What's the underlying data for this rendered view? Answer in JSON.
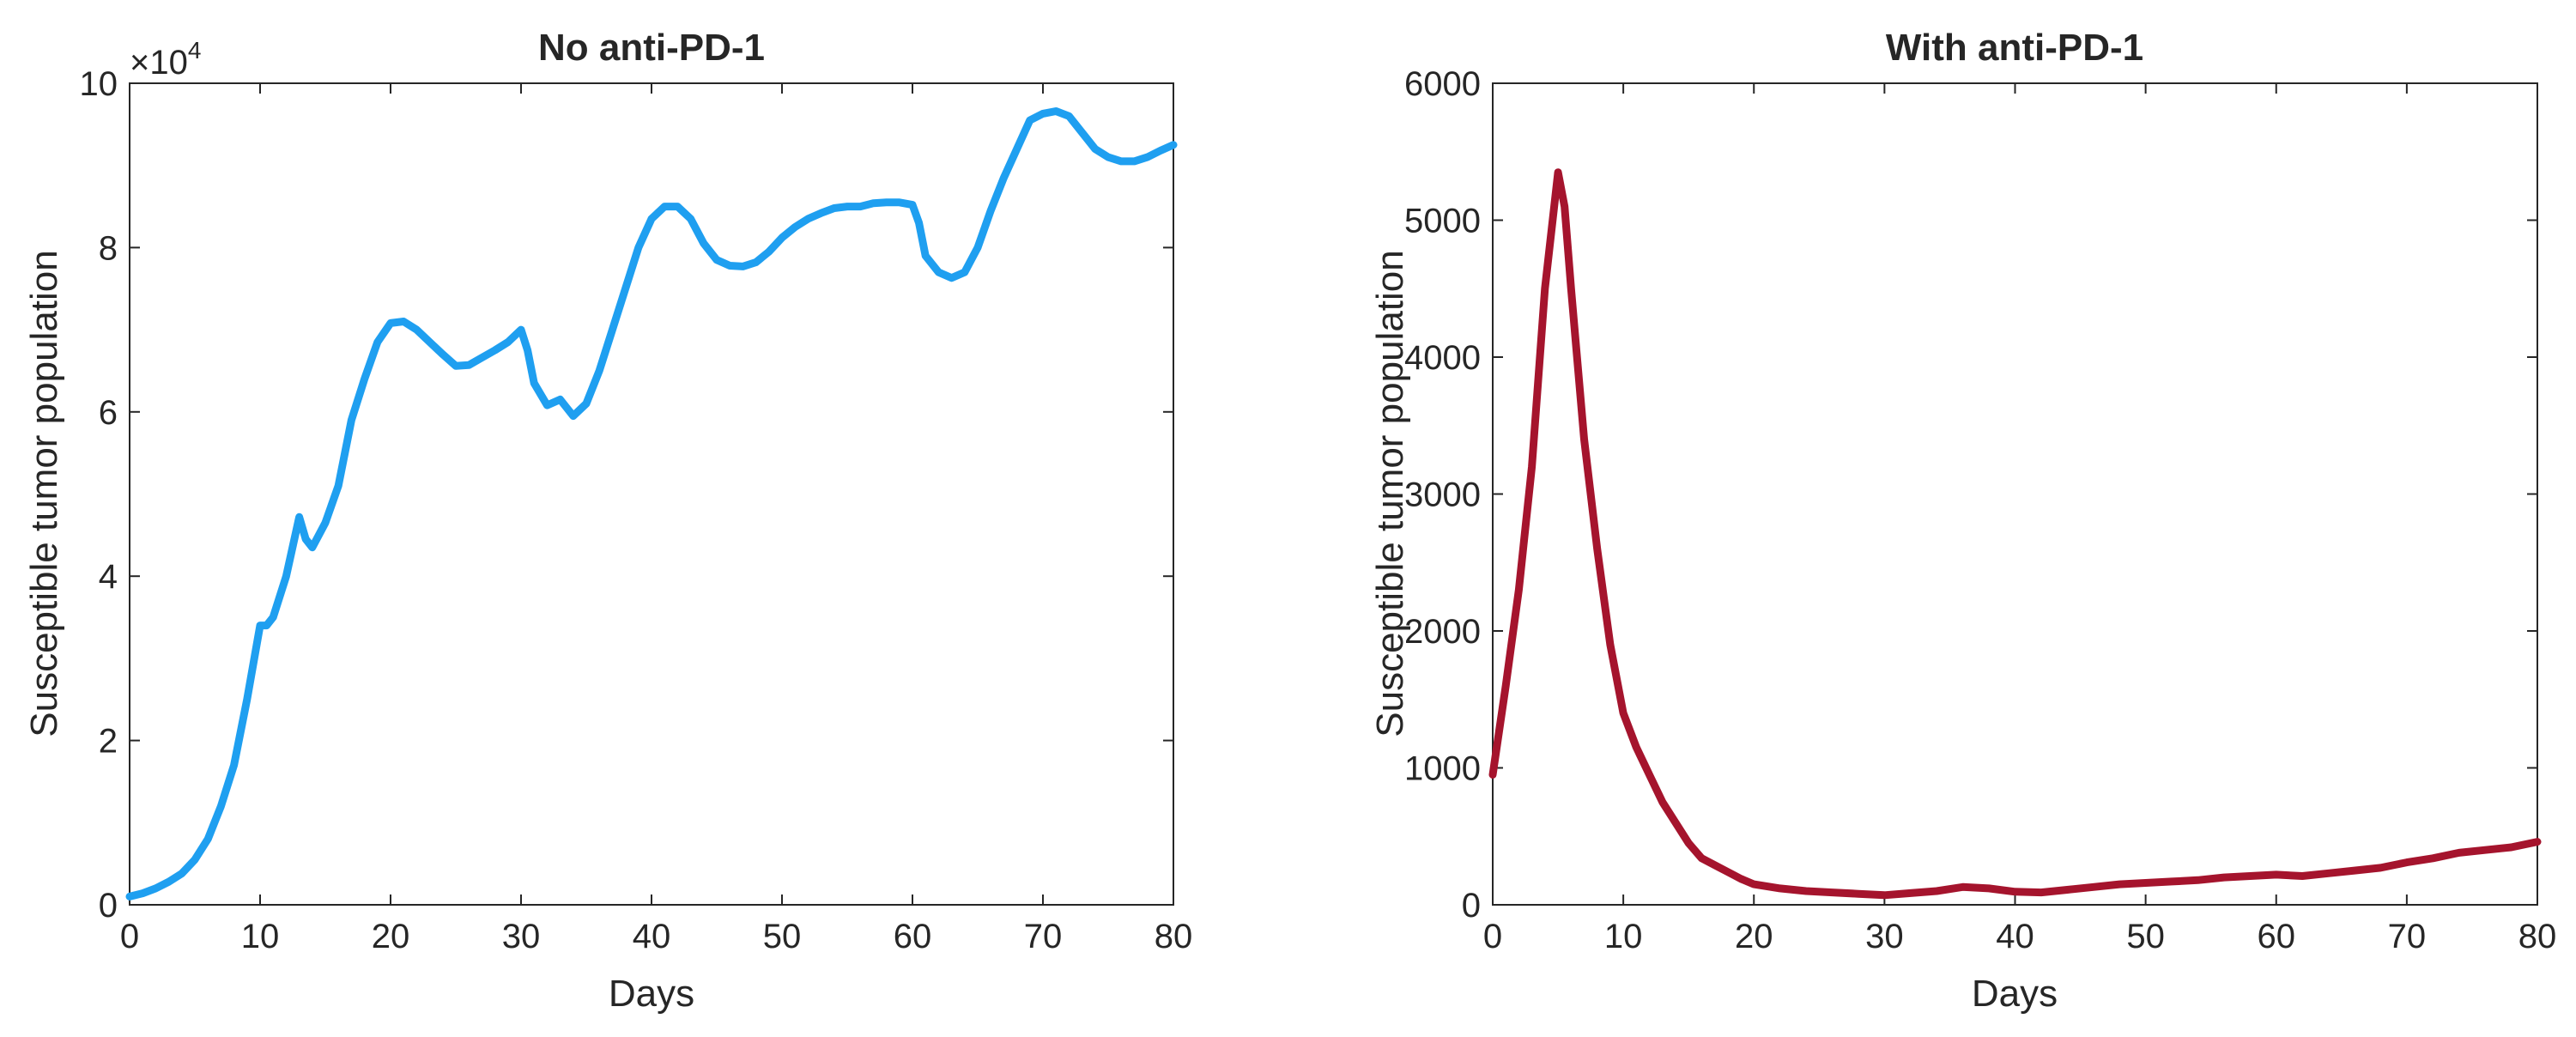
{
  "chart_data": [
    {
      "type": "line",
      "title": "No anti-PD-1",
      "xlabel": "Days",
      "ylabel": "Susceptible tumor population",
      "xlim": [
        0,
        80
      ],
      "ylim": [
        0,
        100000
      ],
      "xticks": [
        0,
        10,
        20,
        30,
        40,
        50,
        60,
        70,
        80
      ],
      "yticks": [
        0,
        2,
        4,
        6,
        8,
        10
      ],
      "y_exponent_label": {
        "base": "×10",
        "power": "4"
      },
      "grid": false,
      "color": "#1f9ff0",
      "series": [
        {
          "x": [
            0,
            1,
            2,
            3,
            4,
            5,
            6,
            7,
            8,
            9,
            10,
            10.5,
            11,
            12,
            13,
            13.5,
            14,
            15,
            16,
            17,
            18,
            19,
            20,
            21,
            22,
            23,
            24,
            25,
            26,
            27,
            28,
            29,
            30,
            30.5,
            31,
            32,
            33,
            33.5,
            34,
            35,
            36,
            37,
            38,
            39,
            40,
            41,
            42,
            43,
            44,
            45,
            46,
            47,
            48,
            49,
            50,
            51,
            52,
            53,
            54,
            55,
            56,
            57,
            58,
            59,
            60,
            60.5,
            61,
            62,
            63,
            64,
            65,
            66,
            67,
            68,
            69,
            70,
            71,
            72,
            73,
            74,
            75,
            76,
            77,
            78,
            79,
            80
          ],
          "y": [
            1000,
            1400,
            2000,
            2800,
            3800,
            5500,
            8000,
            12000,
            17000,
            25000,
            34000,
            34000,
            35000,
            40000,
            47200,
            44500,
            43500,
            46500,
            51000,
            59000,
            64000,
            68500,
            70800,
            71000,
            70000,
            68500,
            67000,
            65600,
            65700,
            66600,
            67500,
            68500,
            70000,
            67500,
            63500,
            60800,
            61500,
            60500,
            59500,
            61000,
            65000,
            70000,
            75000,
            80000,
            83500,
            85000,
            85000,
            83500,
            80500,
            78500,
            77800,
            77700,
            78200,
            79500,
            81200,
            82500,
            83500,
            84200,
            84800,
            85000,
            85000,
            85400,
            85500,
            85500,
            85200,
            83000,
            79000,
            77000,
            76300,
            77000,
            80000,
            84500,
            88500,
            92000,
            95500,
            96300,
            96600,
            96000,
            94000,
            92000,
            91000,
            90500,
            90500,
            91000,
            91800,
            92500
          ]
        }
      ]
    },
    {
      "type": "line",
      "title": "With anti-PD-1",
      "xlabel": "Days",
      "ylabel": "Susceptible tumor population",
      "xlim": [
        0,
        80
      ],
      "ylim": [
        0,
        6000
      ],
      "xticks": [
        0,
        10,
        20,
        30,
        40,
        50,
        60,
        70,
        80
      ],
      "yticks": [
        0,
        1000,
        2000,
        3000,
        4000,
        5000,
        6000
      ],
      "grid": false,
      "color": "#a5142d",
      "series": [
        {
          "x": [
            0,
            1,
            2,
            3,
            4,
            5,
            5.5,
            6,
            7,
            8,
            9,
            10,
            11,
            12,
            13,
            14,
            15,
            16,
            17,
            18,
            19,
            20,
            22,
            24,
            26,
            28,
            30,
            32,
            34,
            36,
            38,
            40,
            42,
            44,
            46,
            48,
            50,
            52,
            54,
            56,
            58,
            60,
            62,
            64,
            66,
            68,
            70,
            72,
            74,
            76,
            78,
            80
          ],
          "y": [
            950,
            1600,
            2300,
            3200,
            4500,
            5350,
            5100,
            4500,
            3400,
            2600,
            1900,
            1400,
            1150,
            950,
            750,
            600,
            450,
            340,
            290,
            240,
            190,
            150,
            120,
            100,
            90,
            80,
            70,
            85,
            100,
            130,
            120,
            95,
            90,
            110,
            130,
            150,
            160,
            170,
            180,
            200,
            210,
            220,
            210,
            230,
            250,
            270,
            310,
            340,
            380,
            400,
            420,
            460
          ]
        }
      ]
    }
  ]
}
